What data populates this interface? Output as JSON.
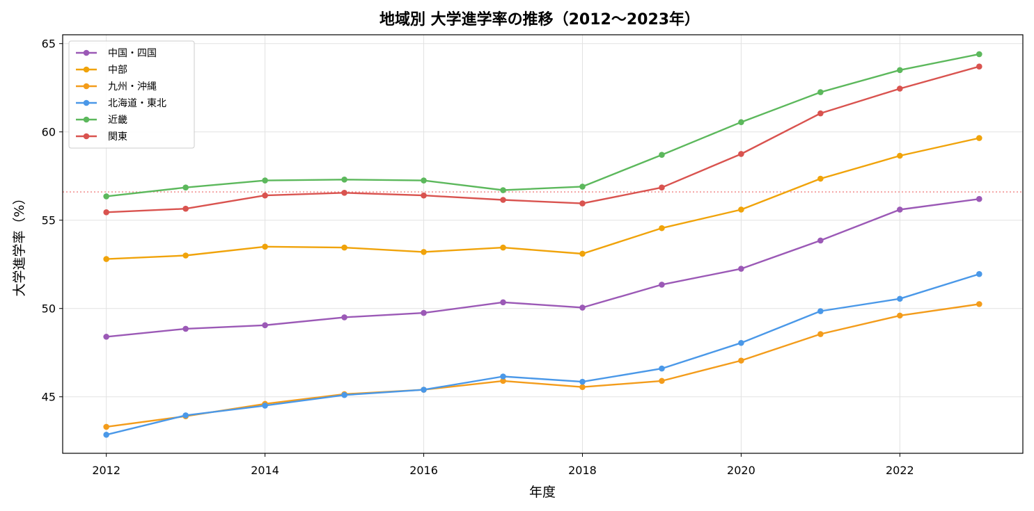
{
  "chart_data": {
    "type": "line",
    "title": "地域別 大学進学率の推移（2012〜2023年）",
    "xlabel": "年度",
    "ylabel": "大学進学率（%）",
    "x": [
      2012,
      2013,
      2014,
      2015,
      2016,
      2017,
      2018,
      2019,
      2020,
      2021,
      2022,
      2023
    ],
    "xticks": [
      2012,
      2014,
      2016,
      2018,
      2020,
      2022
    ],
    "yticks": [
      45,
      50,
      55,
      60,
      65
    ],
    "xlim": [
      2011.45,
      2023.55
    ],
    "ylim": [
      41.8,
      65.5
    ],
    "grid": true,
    "legend_position": "upper-left",
    "reference_line": {
      "y": 56.6,
      "color": "#f08080",
      "style": "dotted"
    },
    "series": [
      {
        "name": "中国・四国",
        "color": "#9b59b6",
        "values": [
          48.4,
          48.85,
          49.05,
          49.5,
          49.75,
          50.35,
          50.05,
          51.35,
          52.25,
          53.85,
          55.6,
          56.2
        ]
      },
      {
        "name": "中部",
        "color": "#f0a30a",
        "values": [
          52.8,
          53.0,
          53.5,
          53.45,
          53.2,
          53.45,
          53.1,
          54.55,
          55.6,
          57.35,
          58.65,
          59.65
        ]
      },
      {
        "name": "九州・沖縄",
        "color": "#f39c1b",
        "values": [
          43.3,
          43.9,
          44.6,
          45.15,
          45.4,
          45.9,
          45.55,
          45.9,
          47.05,
          48.55,
          49.6,
          50.25
        ]
      },
      {
        "name": "北海道・東北",
        "color": "#4a98e8",
        "values": [
          42.85,
          43.95,
          44.5,
          45.1,
          45.4,
          46.15,
          45.85,
          46.6,
          48.05,
          49.85,
          50.55,
          51.95
        ]
      },
      {
        "name": "近畿",
        "color": "#5cb85c",
        "values": [
          56.35,
          56.85,
          57.25,
          57.3,
          57.25,
          56.7,
          56.9,
          58.7,
          60.55,
          62.25,
          63.5,
          64.4
        ]
      },
      {
        "name": "関東",
        "color": "#d9534f",
        "values": [
          55.45,
          55.65,
          56.4,
          56.55,
          56.4,
          56.15,
          55.95,
          56.85,
          58.75,
          61.05,
          62.45,
          63.7
        ]
      }
    ]
  }
}
